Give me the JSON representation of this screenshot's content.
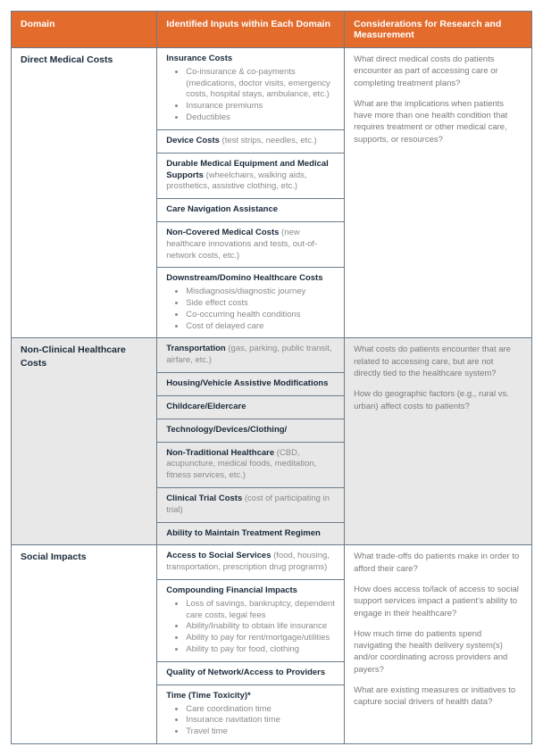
{
  "colors": {
    "header_bg": "#e36c2c",
    "header_text": "#ffffff",
    "border": "#6b7b8a",
    "shaded_bg": "#e8e8e8",
    "title_text": "#1a2a3a",
    "body_text": "#7a7a7a"
  },
  "headers": {
    "domain": "Domain",
    "inputs": "Identified Inputs within Each Domain",
    "considerations": "Considerations for Research and Measurement"
  },
  "sections": {
    "direct": {
      "domain": "Direct Medical Costs",
      "inputs": {
        "insurance": {
          "title": "Insurance Costs",
          "b0": "Co-insurance & co-payments (medications, doctor visits, emergency costs, hospital stays, ambulance, etc.)",
          "b1": "Insurance premiums",
          "b2": "Deductibles"
        },
        "device": {
          "title": "Device Costs",
          "note": " (test strips, needles, etc.)"
        },
        "dme": {
          "title": "Durable Medical Equipment and Medical Supports",
          "note": " (wheelchairs, walking aids, prosthetics, assistive clothing, etc.)"
        },
        "nav": {
          "title": "Care Navigation Assistance"
        },
        "noncov": {
          "title": "Non-Covered Medical Costs",
          "note": " (new healthcare innovations and tests, out-of-network costs, etc.)"
        },
        "down": {
          "title": "Downstream/Domino Healthcare Costs",
          "b0": "Misdiagnosis/diagnostic journey",
          "b1": "Side effect costs",
          "b2": "Co-occurring health conditions",
          "b3": "Cost of delayed care"
        }
      },
      "considerations": {
        "p0": "What direct medical costs do patients encounter as part of accessing care or completing treatment plans?",
        "p1": "What are the implications when patients have more than one health condition that requires treatment or other medical care, supports, or resources?"
      }
    },
    "nonclinical": {
      "domain": "Non-Clinical Healthcare Costs",
      "inputs": {
        "transport": {
          "title": "Transportation",
          "note": " (gas, parking, public transit, airfare, etc.)"
        },
        "housing": {
          "title": "Housing/Vehicle Assistive Modifications"
        },
        "childcare": {
          "title": "Childcare/Eldercare"
        },
        "tech": {
          "title": "Technology/Devices/Clothing/"
        },
        "nontrad": {
          "title": "Non-Traditional Healthcare",
          "note": " (CBD, acupuncture, medical foods, meditation, fitness services, etc.)"
        },
        "trial": {
          "title": "Clinical Trial Costs",
          "note": " (cost of participating in trial)"
        },
        "regimen": {
          "title": "Ability to Maintain Treatment Regimen"
        }
      },
      "considerations": {
        "p0": "What costs do patients encounter that are related to accessing care, but are not directly tied to the healthcare system?",
        "p1": "How do geographic factors (e.g., rural vs. urban) affect costs to patients?"
      }
    },
    "social": {
      "domain": "Social Impacts",
      "inputs": {
        "access": {
          "title": "Access to Social Services",
          "note": " (food, housing, transportation, prescription drug programs)"
        },
        "compound": {
          "title": "Compounding Financial Impacts",
          "b0": "Loss of savings, bankruptcy, dependent care costs, legal fees",
          "b1": "Ability/Inability to obtain life insurance",
          "b2": "Ability to pay for rent/mortgage/utilities",
          "b3": "Ability to pay for food, clothing"
        },
        "network": {
          "title": "Quality of Network/Access to Providers"
        },
        "time": {
          "title": "Time (Time Toxicity)*",
          "b0": "Care coordination time",
          "b1": "Insurance navitation time",
          "b2": "Travel time"
        }
      },
      "considerations": {
        "p0": "What trade-offs do patients make in order to afford their care?",
        "p1": "How does access to/lack of access to social support services impact a patient's ability to engage in their healthcare?",
        "p2": "How much time do patients spend navigating the health delivery system(s) and/or coordinating across providers and payers?",
        "p3": "What are existing measures or initiatives to capture social drivers of health data?"
      }
    }
  }
}
